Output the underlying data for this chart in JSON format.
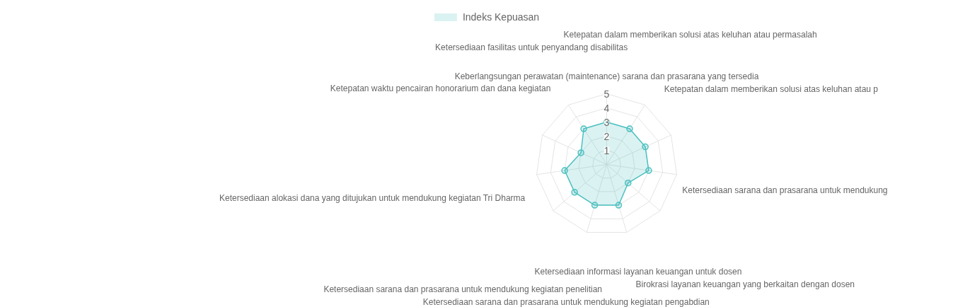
{
  "chart_data": {
    "type": "radar",
    "categories": [
      "Keberlangsungan perawatan (maintenance) sarana dan prasarana yang tersedia",
      "Ketepatan dalam memberikan solusi atas keluhan atau permasalah",
      "Ketepatan dalam memberikan solusi atas keluhan atau p",
      "Ketersediaan sarana dan prasarana untuk mendukung",
      "Birokrasi layanan keuangan yang berkaitan dengan dosen",
      "Ketersediaan informasi layanan keuangan untuk dosen",
      "Ketersediaan sarana dan prasarana untuk mendukung kegiatan pengabdian",
      "Ketersediaan sarana dan prasarana untuk mendukung kegiatan penelitian",
      "Ketersediaan alokasi dana yang ditujukan untuk mendukung kegiatan Tri Dharma",
      "Ketepatan waktu pencairan honorarium dan dana kegiatan",
      "Ketersediaan fasilitas untuk penyandang disabilitas"
    ],
    "series": [
      {
        "name": "Indeks Kepuasan",
        "color": "#4bc0c0",
        "values": [
          3.0,
          3.0,
          3.0,
          3.0,
          2.0,
          3.0,
          3.0,
          3.0,
          3.0,
          2.0,
          3.0
        ]
      }
    ],
    "ylim": [
      0,
      5
    ],
    "yticks": [
      1,
      2,
      3,
      4,
      5
    ],
    "grid": true,
    "legend": "top",
    "marker": "circle"
  }
}
